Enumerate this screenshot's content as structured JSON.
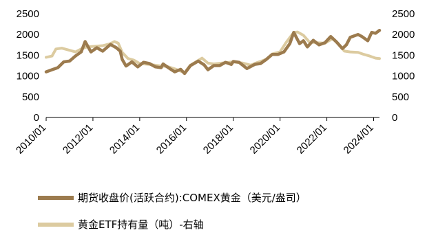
{
  "colors": {
    "futures": "#9C7B4E",
    "etf": "#DCCBA0",
    "axis": "#000000"
  },
  "legend": {
    "futures_label": "期货收盘价(活跃合约):COMEX黄金（美元/盎司）",
    "etf_label": "黄金ETF持有量（吨）-右轴"
  },
  "chart_data": {
    "type": "line",
    "title": "",
    "xlabel": "",
    "ylabel": "",
    "ylim": [
      0,
      2500
    ],
    "y2lim": [
      0,
      2500
    ],
    "yticks": [
      "0",
      "500",
      "1000",
      "1500",
      "2000",
      "2500"
    ],
    "y2ticks": [
      "0",
      "500",
      "1000",
      "1500",
      "2000",
      "2500"
    ],
    "xticks": [
      "2010/01",
      "2012/01",
      "2014/01",
      "2016/01",
      "2018/01",
      "2020/01",
      "2022/01",
      "2024/01"
    ],
    "xrange": [
      "2010-01",
      "2024-04"
    ],
    "grid": false,
    "legend_position": "bottom",
    "series": [
      {
        "name": "期货收盘价(活跃合约):COMEX黄金（美元/盎司）",
        "axis": "left",
        "points": [
          [
            "2010-01",
            1100
          ],
          [
            "2010-04",
            1150
          ],
          [
            "2010-07",
            1200
          ],
          [
            "2010-10",
            1340
          ],
          [
            "2011-01",
            1360
          ],
          [
            "2011-04",
            1480
          ],
          [
            "2011-07",
            1580
          ],
          [
            "2011-09",
            1830
          ],
          [
            "2011-12",
            1580
          ],
          [
            "2012-03",
            1680
          ],
          [
            "2012-06",
            1600
          ],
          [
            "2012-10",
            1760
          ],
          [
            "2013-01",
            1680
          ],
          [
            "2013-03",
            1600
          ],
          [
            "2013-04",
            1400
          ],
          [
            "2013-06",
            1240
          ],
          [
            "2013-09",
            1340
          ],
          [
            "2013-12",
            1220
          ],
          [
            "2014-03",
            1330
          ],
          [
            "2014-06",
            1300
          ],
          [
            "2014-09",
            1220
          ],
          [
            "2014-12",
            1200
          ],
          [
            "2015-01",
            1290
          ],
          [
            "2015-04",
            1190
          ],
          [
            "2015-07",
            1100
          ],
          [
            "2015-10",
            1160
          ],
          [
            "2015-12",
            1060
          ],
          [
            "2016-03",
            1250
          ],
          [
            "2016-07",
            1360
          ],
          [
            "2016-10",
            1270
          ],
          [
            "2016-12",
            1150
          ],
          [
            "2017-03",
            1250
          ],
          [
            "2017-06",
            1250
          ],
          [
            "2017-09",
            1330
          ],
          [
            "2017-12",
            1280
          ],
          [
            "2018-01",
            1350
          ],
          [
            "2018-04",
            1330
          ],
          [
            "2018-08",
            1180
          ],
          [
            "2018-12",
            1280
          ],
          [
            "2019-03",
            1300
          ],
          [
            "2019-06",
            1400
          ],
          [
            "2019-09",
            1520
          ],
          [
            "2019-12",
            1520
          ],
          [
            "2020-03",
            1580
          ],
          [
            "2020-06",
            1780
          ],
          [
            "2020-08",
            2050
          ],
          [
            "2020-11",
            1780
          ],
          [
            "2021-01",
            1850
          ],
          [
            "2021-03",
            1700
          ],
          [
            "2021-06",
            1860
          ],
          [
            "2021-09",
            1750
          ],
          [
            "2021-12",
            1800
          ],
          [
            "2022-03",
            1950
          ],
          [
            "2022-06",
            1820
          ],
          [
            "2022-09",
            1660
          ],
          [
            "2022-11",
            1750
          ],
          [
            "2023-01",
            1930
          ],
          [
            "2023-05",
            2000
          ],
          [
            "2023-07",
            1950
          ],
          [
            "2023-10",
            1850
          ],
          [
            "2023-12",
            2050
          ],
          [
            "2024-02",
            2030
          ],
          [
            "2024-04",
            2100
          ]
        ]
      },
      {
        "name": "黄金ETF持有量（吨）-右轴",
        "axis": "right",
        "points": [
          [
            "2010-01",
            1450
          ],
          [
            "2010-04",
            1480
          ],
          [
            "2010-06",
            1650
          ],
          [
            "2010-09",
            1670
          ],
          [
            "2011-01",
            1620
          ],
          [
            "2011-04",
            1580
          ],
          [
            "2011-07",
            1650
          ],
          [
            "2011-10",
            1700
          ],
          [
            "2012-03",
            1720
          ],
          [
            "2012-06",
            1730
          ],
          [
            "2012-10",
            1780
          ],
          [
            "2012-12",
            1830
          ],
          [
            "2013-02",
            1790
          ],
          [
            "2013-04",
            1570
          ],
          [
            "2013-07",
            1420
          ],
          [
            "2013-10",
            1380
          ],
          [
            "2014-01",
            1300
          ],
          [
            "2014-06",
            1280
          ],
          [
            "2014-12",
            1240
          ],
          [
            "2015-03",
            1230
          ],
          [
            "2015-07",
            1170
          ],
          [
            "2015-12",
            1080
          ],
          [
            "2016-03",
            1260
          ],
          [
            "2016-09",
            1430
          ],
          [
            "2016-12",
            1310
          ],
          [
            "2017-03",
            1290
          ],
          [
            "2017-09",
            1320
          ],
          [
            "2018-01",
            1340
          ],
          [
            "2018-06",
            1310
          ],
          [
            "2018-10",
            1260
          ],
          [
            "2019-01",
            1320
          ],
          [
            "2019-06",
            1400
          ],
          [
            "2019-09",
            1530
          ],
          [
            "2020-01",
            1580
          ],
          [
            "2020-04",
            1800
          ],
          [
            "2020-08",
            2050
          ],
          [
            "2020-10",
            2060
          ],
          [
            "2021-01",
            1980
          ],
          [
            "2021-04",
            1820
          ],
          [
            "2021-08",
            1800
          ],
          [
            "2021-12",
            1790
          ],
          [
            "2022-04",
            1900
          ],
          [
            "2022-07",
            1760
          ],
          [
            "2022-10",
            1600
          ],
          [
            "2023-01",
            1580
          ],
          [
            "2023-05",
            1570
          ],
          [
            "2023-08",
            1520
          ],
          [
            "2023-11",
            1480
          ],
          [
            "2024-02",
            1430
          ],
          [
            "2024-04",
            1420
          ]
        ]
      }
    ]
  }
}
